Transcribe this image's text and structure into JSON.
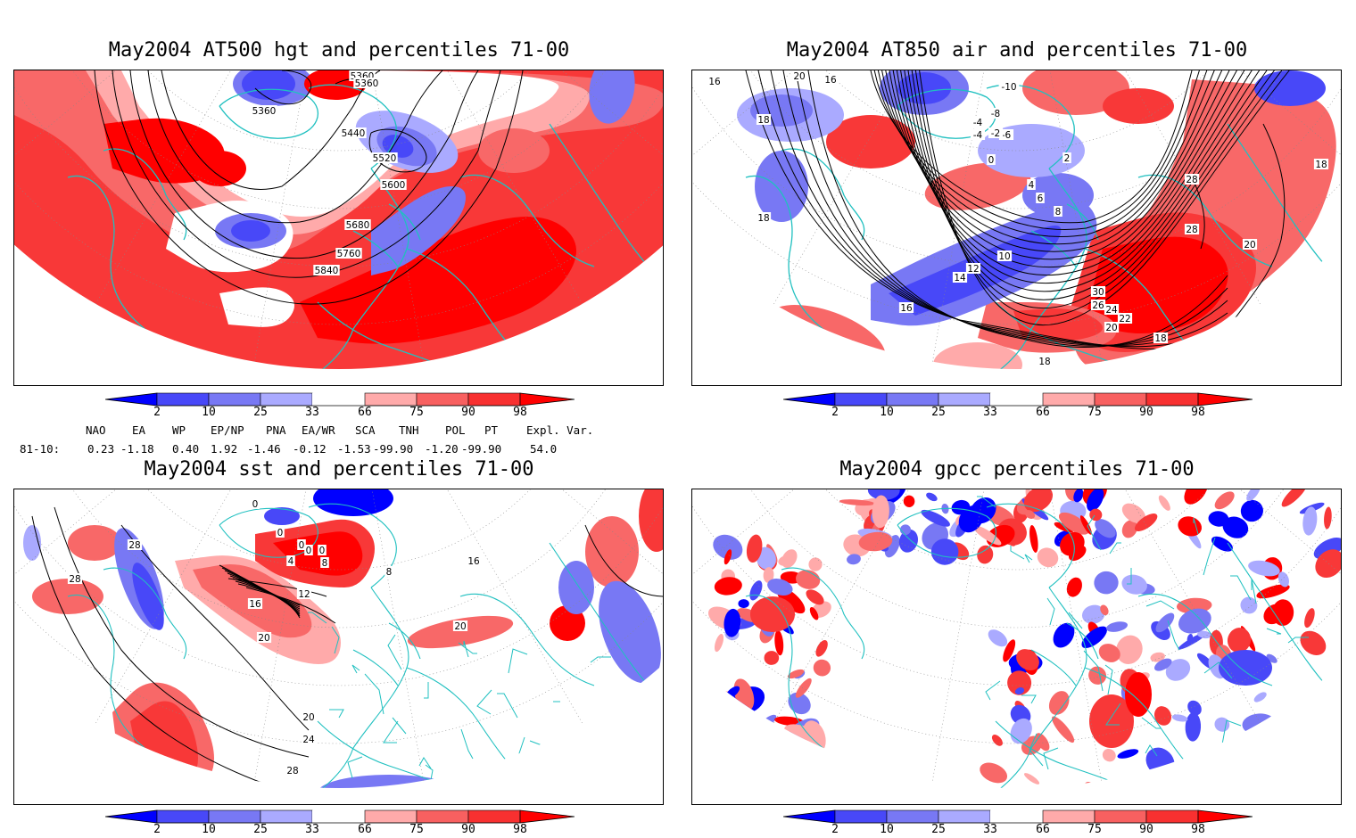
{
  "panels": [
    {
      "title": "May2004 AT500 hgt and percentiles 71-00",
      "contour_labels": [
        "5360",
        "5360",
        "5360",
        "5440",
        "5520",
        "5600",
        "5680",
        "5760",
        "5840"
      ]
    },
    {
      "title": "May2004 AT850 air and percentiles 71-00",
      "contour_labels": [
        "20",
        "16",
        "16",
        "18",
        "18",
        "-10",
        "-4",
        "-8",
        "-6",
        "-2",
        "-4",
        "0",
        "2",
        "4",
        "6",
        "8",
        "10",
        "12",
        "14",
        "16",
        "28",
        "28",
        "18",
        "20",
        "30",
        "26",
        "24",
        "22",
        "20",
        "18",
        "18"
      ]
    },
    {
      "title": "May2004 sst and percentiles 71-00",
      "contour_labels": [
        "28",
        "28",
        "0",
        "0",
        "0",
        "0",
        "0",
        "4",
        "8",
        "12",
        "16",
        "20",
        "20",
        "24",
        "28",
        "28",
        "16",
        "20",
        "8"
      ]
    },
    {
      "title": "May2004 gpcc percentiles 71-00",
      "contour_labels": []
    }
  ],
  "colorbar": {
    "labels": [
      "2",
      "10",
      "25",
      "33",
      "66",
      "75",
      "90",
      "98"
    ],
    "colors": [
      "#0000ff",
      "#4848f8",
      "#7878f4",
      "#aaaaff",
      "#ffffff",
      "#ffaaaa",
      "#f86060",
      "#f83030",
      "#ff0000"
    ]
  },
  "indices": {
    "header": [
      "NAO",
      "EA",
      "WP",
      "EP/NP",
      "PNA",
      "EA/WR",
      "SCA",
      "TNH",
      "POL",
      "PT",
      "Expl. Var."
    ],
    "row_label": "81-10:",
    "values": [
      "0.23",
      "-1.18",
      "0.40",
      "1.92",
      "-1.46",
      "-0.12",
      "-1.53",
      "-99.90",
      "-1.20",
      "-99.90",
      "54.0"
    ]
  },
  "colors": {
    "coast": "#20c0c0",
    "strong_red": "#ff0000",
    "red": "#f83838",
    "mid_red": "#f86868",
    "light_red": "#ffaaaa",
    "strong_blue": "#0000ff",
    "blue": "#4848f8",
    "mid_blue": "#7878f4",
    "light_blue": "#aaaaff"
  }
}
